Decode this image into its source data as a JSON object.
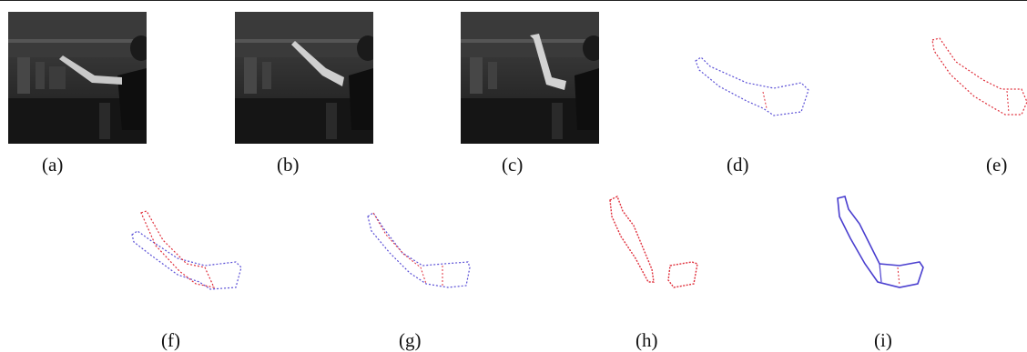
{
  "figure": {
    "panels": [
      {
        "label": "(a)",
        "kind": "photo"
      },
      {
        "label": "(b)",
        "kind": "photo"
      },
      {
        "label": "(c)",
        "kind": "photo"
      },
      {
        "label": "(d)",
        "kind": "contour",
        "colors": [
          "#5a4fd6"
        ]
      },
      {
        "label": "(e)",
        "kind": "contour",
        "colors": [
          "#e0303c"
        ]
      },
      {
        "label": "(f)",
        "kind": "contour",
        "colors": [
          "#5a4fd6",
          "#e0303c"
        ]
      },
      {
        "label": "(g)",
        "kind": "contour",
        "colors": [
          "#5a4fd6",
          "#e0303c"
        ]
      },
      {
        "label": "(h)",
        "kind": "contour",
        "colors": [
          "#e0303c"
        ]
      },
      {
        "label": "(i)",
        "kind": "contour",
        "colors": [
          "#4a3fcf",
          "#e0303c"
        ]
      }
    ]
  }
}
